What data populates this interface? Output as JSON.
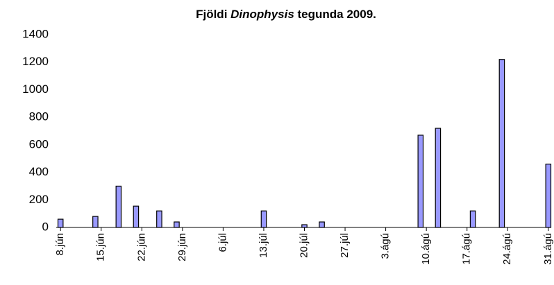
{
  "chart_data": {
    "type": "bar",
    "title": [
      "Fjöldi",
      "Dinophysis",
      "tegunda 2009."
    ],
    "categories": [
      "8.jún",
      null,
      null,
      null,
      null,
      null,
      null,
      "15.jún",
      null,
      null,
      null,
      null,
      null,
      null,
      "22.jún",
      null,
      null,
      null,
      null,
      null,
      null,
      "29.jún",
      null,
      null,
      null,
      null,
      null,
      null,
      "6.júl",
      null,
      null,
      null,
      null,
      null,
      null,
      "13.júl",
      null,
      null,
      null,
      null,
      null,
      null,
      "20.júl",
      null,
      null,
      null,
      null,
      null,
      null,
      "27.júl",
      null,
      null,
      null,
      null,
      null,
      null,
      "3.ágú",
      null,
      null,
      null,
      null,
      null,
      null,
      "10.ágú",
      null,
      null,
      null,
      null,
      null,
      null,
      "17.ágú",
      null,
      null,
      null,
      null,
      null,
      null,
      "24.ágú",
      null,
      null,
      null,
      null,
      null,
      null,
      "31.ágú"
    ],
    "values": [
      60,
      null,
      null,
      null,
      null,
      null,
      80,
      null,
      null,
      null,
      300,
      null,
      null,
      155,
      null,
      null,
      null,
      120,
      null,
      null,
      40,
      null,
      null,
      null,
      null,
      null,
      null,
      null,
      null,
      null,
      null,
      null,
      null,
      null,
      null,
      120,
      null,
      null,
      null,
      null,
      null,
      null,
      20,
      null,
      null,
      40,
      null,
      null,
      null,
      null,
      null,
      null,
      null,
      null,
      null,
      null,
      null,
      null,
      null,
      null,
      null,
      null,
      670,
      null,
      null,
      720,
      null,
      null,
      null,
      null,
      null,
      120,
      null,
      null,
      null,
      null,
      1220,
      null,
      null,
      null,
      null,
      null,
      null,
      null,
      460
    ],
    "color": "#9999ff",
    "ylim": [
      0,
      1400
    ],
    "yticks": [
      0,
      200,
      400,
      600,
      800,
      1000,
      1200,
      1400
    ],
    "grid": false
  }
}
